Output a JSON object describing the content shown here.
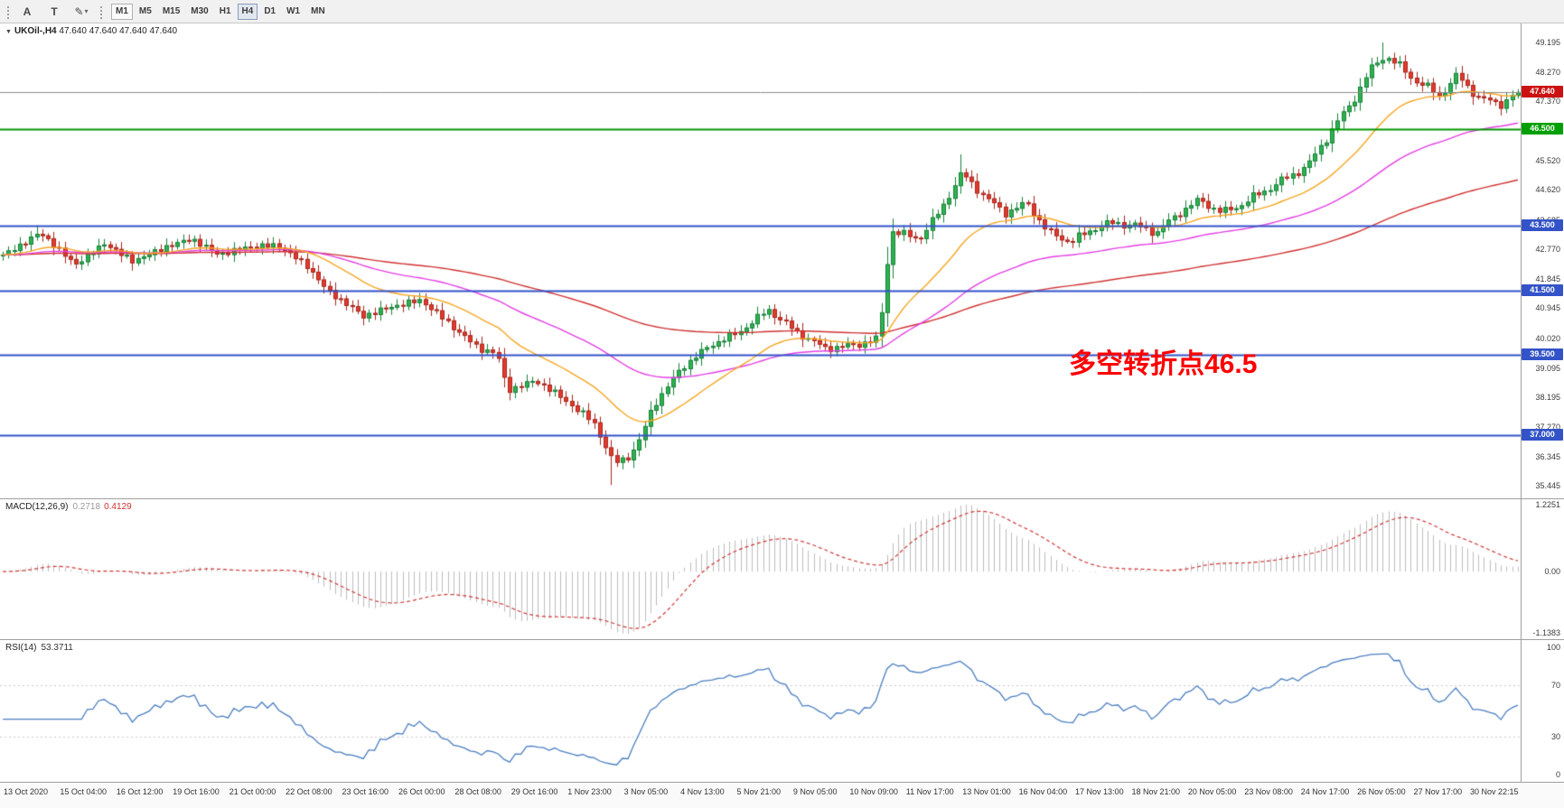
{
  "icons": {
    "collapse": "▼",
    "caret": "▾"
  },
  "toolbar": {
    "tools": [
      {
        "name": "pointer-tool-button",
        "glyph": "A"
      },
      {
        "name": "text-tool-button",
        "glyph": "T"
      },
      {
        "name": "draw-tool-button",
        "glyph": "✎",
        "caret": true
      }
    ],
    "timeframes": [
      {
        "label": "M1",
        "state": "boxed"
      },
      {
        "label": "M5"
      },
      {
        "label": "M15"
      },
      {
        "label": "M30"
      },
      {
        "label": "H1"
      },
      {
        "label": "H4",
        "state": "active"
      },
      {
        "label": "D1"
      },
      {
        "label": "W1"
      },
      {
        "label": "MN"
      }
    ]
  },
  "header": {
    "symbol_period": "UKOil-,H4",
    "ohlc": "47.640 47.640 47.640 47.640"
  },
  "macd_panel": {
    "label": "MACD(12,26,9)",
    "value": "0.2718",
    "signal": "0.4129",
    "axis_labels": [
      "1.2251",
      "0.00",
      "-1.1383"
    ]
  },
  "rsi_panel": {
    "label": "RSI(14)",
    "value": "53.3711",
    "axis_labels": [
      "100",
      "70",
      "30",
      "0"
    ]
  },
  "annotation": {
    "text": "多空转折点46.5",
    "color": "#ff0000"
  },
  "colors": {
    "up": "#2eb24e",
    "up_border": "#17813a",
    "down": "#e23a2c",
    "down_border": "#a8261c",
    "macd_hist": "#bdbdbd",
    "macd_signal": "#cf3535",
    "rsi_line": "#4a7ec0"
  },
  "chart_data": {
    "type": "candlestick",
    "symbol": "UKOil-",
    "timeframe": "H4",
    "last_price": 47.64,
    "n_candles": 270,
    "noise_amplitude": 0.13,
    "price_path_anchors": [
      [
        0.0,
        42.6
      ],
      [
        0.012,
        42.9
      ],
      [
        0.024,
        43.3
      ],
      [
        0.036,
        42.8
      ],
      [
        0.048,
        42.3
      ],
      [
        0.067,
        42.95
      ],
      [
        0.086,
        42.4
      ],
      [
        0.105,
        42.8
      ],
      [
        0.124,
        43.1
      ],
      [
        0.143,
        42.6
      ],
      [
        0.162,
        42.85
      ],
      [
        0.181,
        42.9
      ],
      [
        0.2,
        42.3
      ],
      [
        0.214,
        41.5
      ],
      [
        0.238,
        40.7
      ],
      [
        0.257,
        41.0
      ],
      [
        0.276,
        41.2
      ],
      [
        0.295,
        40.45
      ],
      [
        0.314,
        39.7
      ],
      [
        0.326,
        39.55
      ],
      [
        0.333,
        38.4
      ],
      [
        0.352,
        38.7
      ],
      [
        0.371,
        38.1
      ],
      [
        0.39,
        37.4
      ],
      [
        0.403,
        36.15
      ],
      [
        0.412,
        36.3
      ],
      [
        0.419,
        36.7
      ],
      [
        0.429,
        37.9
      ],
      [
        0.448,
        39.1
      ],
      [
        0.467,
        39.8
      ],
      [
        0.486,
        40.2
      ],
      [
        0.505,
        40.9
      ],
      [
        0.524,
        40.2
      ],
      [
        0.543,
        39.7
      ],
      [
        0.562,
        39.8
      ],
      [
        0.578,
        40.0
      ],
      [
        0.586,
        43.35
      ],
      [
        0.605,
        43.1
      ],
      [
        0.619,
        44.0
      ],
      [
        0.633,
        45.15
      ],
      [
        0.648,
        44.4
      ],
      [
        0.662,
        43.9
      ],
      [
        0.676,
        44.2
      ],
      [
        0.69,
        43.3
      ],
      [
        0.705,
        43.0
      ],
      [
        0.719,
        43.4
      ],
      [
        0.733,
        43.6
      ],
      [
        0.748,
        43.5
      ],
      [
        0.762,
        43.3
      ],
      [
        0.776,
        43.9
      ],
      [
        0.79,
        44.3
      ],
      [
        0.805,
        43.9
      ],
      [
        0.819,
        44.2
      ],
      [
        0.833,
        44.6
      ],
      [
        0.848,
        45.0
      ],
      [
        0.862,
        45.4
      ],
      [
        0.876,
        46.4
      ],
      [
        0.89,
        47.3
      ],
      [
        0.902,
        48.3
      ],
      [
        0.912,
        48.8
      ],
      [
        0.919,
        48.55
      ],
      [
        0.933,
        48.0
      ],
      [
        0.948,
        47.55
      ],
      [
        0.96,
        48.15
      ],
      [
        0.976,
        47.4
      ],
      [
        0.99,
        47.3
      ],
      [
        1.0,
        47.64
      ]
    ],
    "extra_wicks": [
      {
        "pos": 0.024,
        "high": 43.52
      },
      {
        "pos": 0.403,
        "low": 35.46
      },
      {
        "pos": 0.586,
        "high": 43.62
      },
      {
        "pos": 0.633,
        "high": 45.72
      },
      {
        "pos": 0.912,
        "high": 49.19
      }
    ],
    "moving_averages": [
      {
        "name": "slow-ma-line",
        "period": 130,
        "color": "#d03232"
      },
      {
        "name": "mid-ma-line",
        "period": 55,
        "color": "#e33fe3"
      },
      {
        "name": "fast-ma-line",
        "period": 21,
        "color": "#f5a623"
      }
    ],
    "hlines": [
      {
        "name": "support-line-37.0",
        "price": 37.0,
        "color": "#3353c8",
        "width": 2
      },
      {
        "name": "support-line-39.5",
        "price": 39.5,
        "color": "#3353c8",
        "width": 2
      },
      {
        "name": "support-line-41.5",
        "price": 41.5,
        "color": "#3353c8",
        "width": 2
      },
      {
        "name": "resistance-line-43.5",
        "price": 43.5,
        "color": "#3353c8",
        "width": 2
      },
      {
        "name": "pivot-line-46.5",
        "price": 46.5,
        "color": "#009600",
        "width": 2
      },
      {
        "name": "current-price-line",
        "price": 47.64,
        "color": "#8c8c8c",
        "width": 1
      }
    ],
    "price_axis": {
      "max": 49.78,
      "min": 35.05,
      "labels": [
        "49.195",
        "48.270",
        "47.370",
        "45.520",
        "44.620",
        "43.685",
        "42.770",
        "41.845",
        "40.945",
        "40.020",
        "39.095",
        "38.195",
        "37.270",
        "36.345",
        "35.445"
      ],
      "badges": [
        {
          "text": "47.640",
          "color": "#cc1111"
        },
        {
          "text": "46.500",
          "color": "#00a000"
        },
        {
          "text": "43.500",
          "color": "#3353c8"
        },
        {
          "text": "41.500",
          "color": "#3353c8"
        },
        {
          "text": "39.500",
          "color": "#3353c8"
        },
        {
          "text": "37.000",
          "color": "#3353c8"
        }
      ]
    },
    "macd": {
      "params": [
        12,
        26,
        9
      ],
      "display_max": 1.2251,
      "display_min": -1.1383
    },
    "rsi": {
      "period": 14,
      "levels": [
        70,
        30
      ],
      "range": [
        0,
        100
      ]
    },
    "time_labels": [
      "13 Oct 2020",
      "15 Oct 04:00",
      "16 Oct 12:00",
      "19 Oct 16:00",
      "21 Oct 00:00",
      "22 Oct 08:00",
      "23 Oct 16:00",
      "26 Oct 00:00",
      "28 Oct 08:00",
      "29 Oct 16:00",
      "1 Nov 23:00",
      "3 Nov 05:00",
      "4 Nov 13:00",
      "5 Nov 21:00",
      "9 Nov 05:00",
      "10 Nov 09:00",
      "11 Nov 17:00",
      "13 Nov 01:00",
      "16 Nov 04:00",
      "17 Nov 13:00",
      "18 Nov 21:00",
      "20 Nov 05:00",
      "23 Nov 08:00",
      "24 Nov 17:00",
      "26 Nov 05:00",
      "27 Nov 17:00",
      "30 Nov 22:15"
    ]
  }
}
